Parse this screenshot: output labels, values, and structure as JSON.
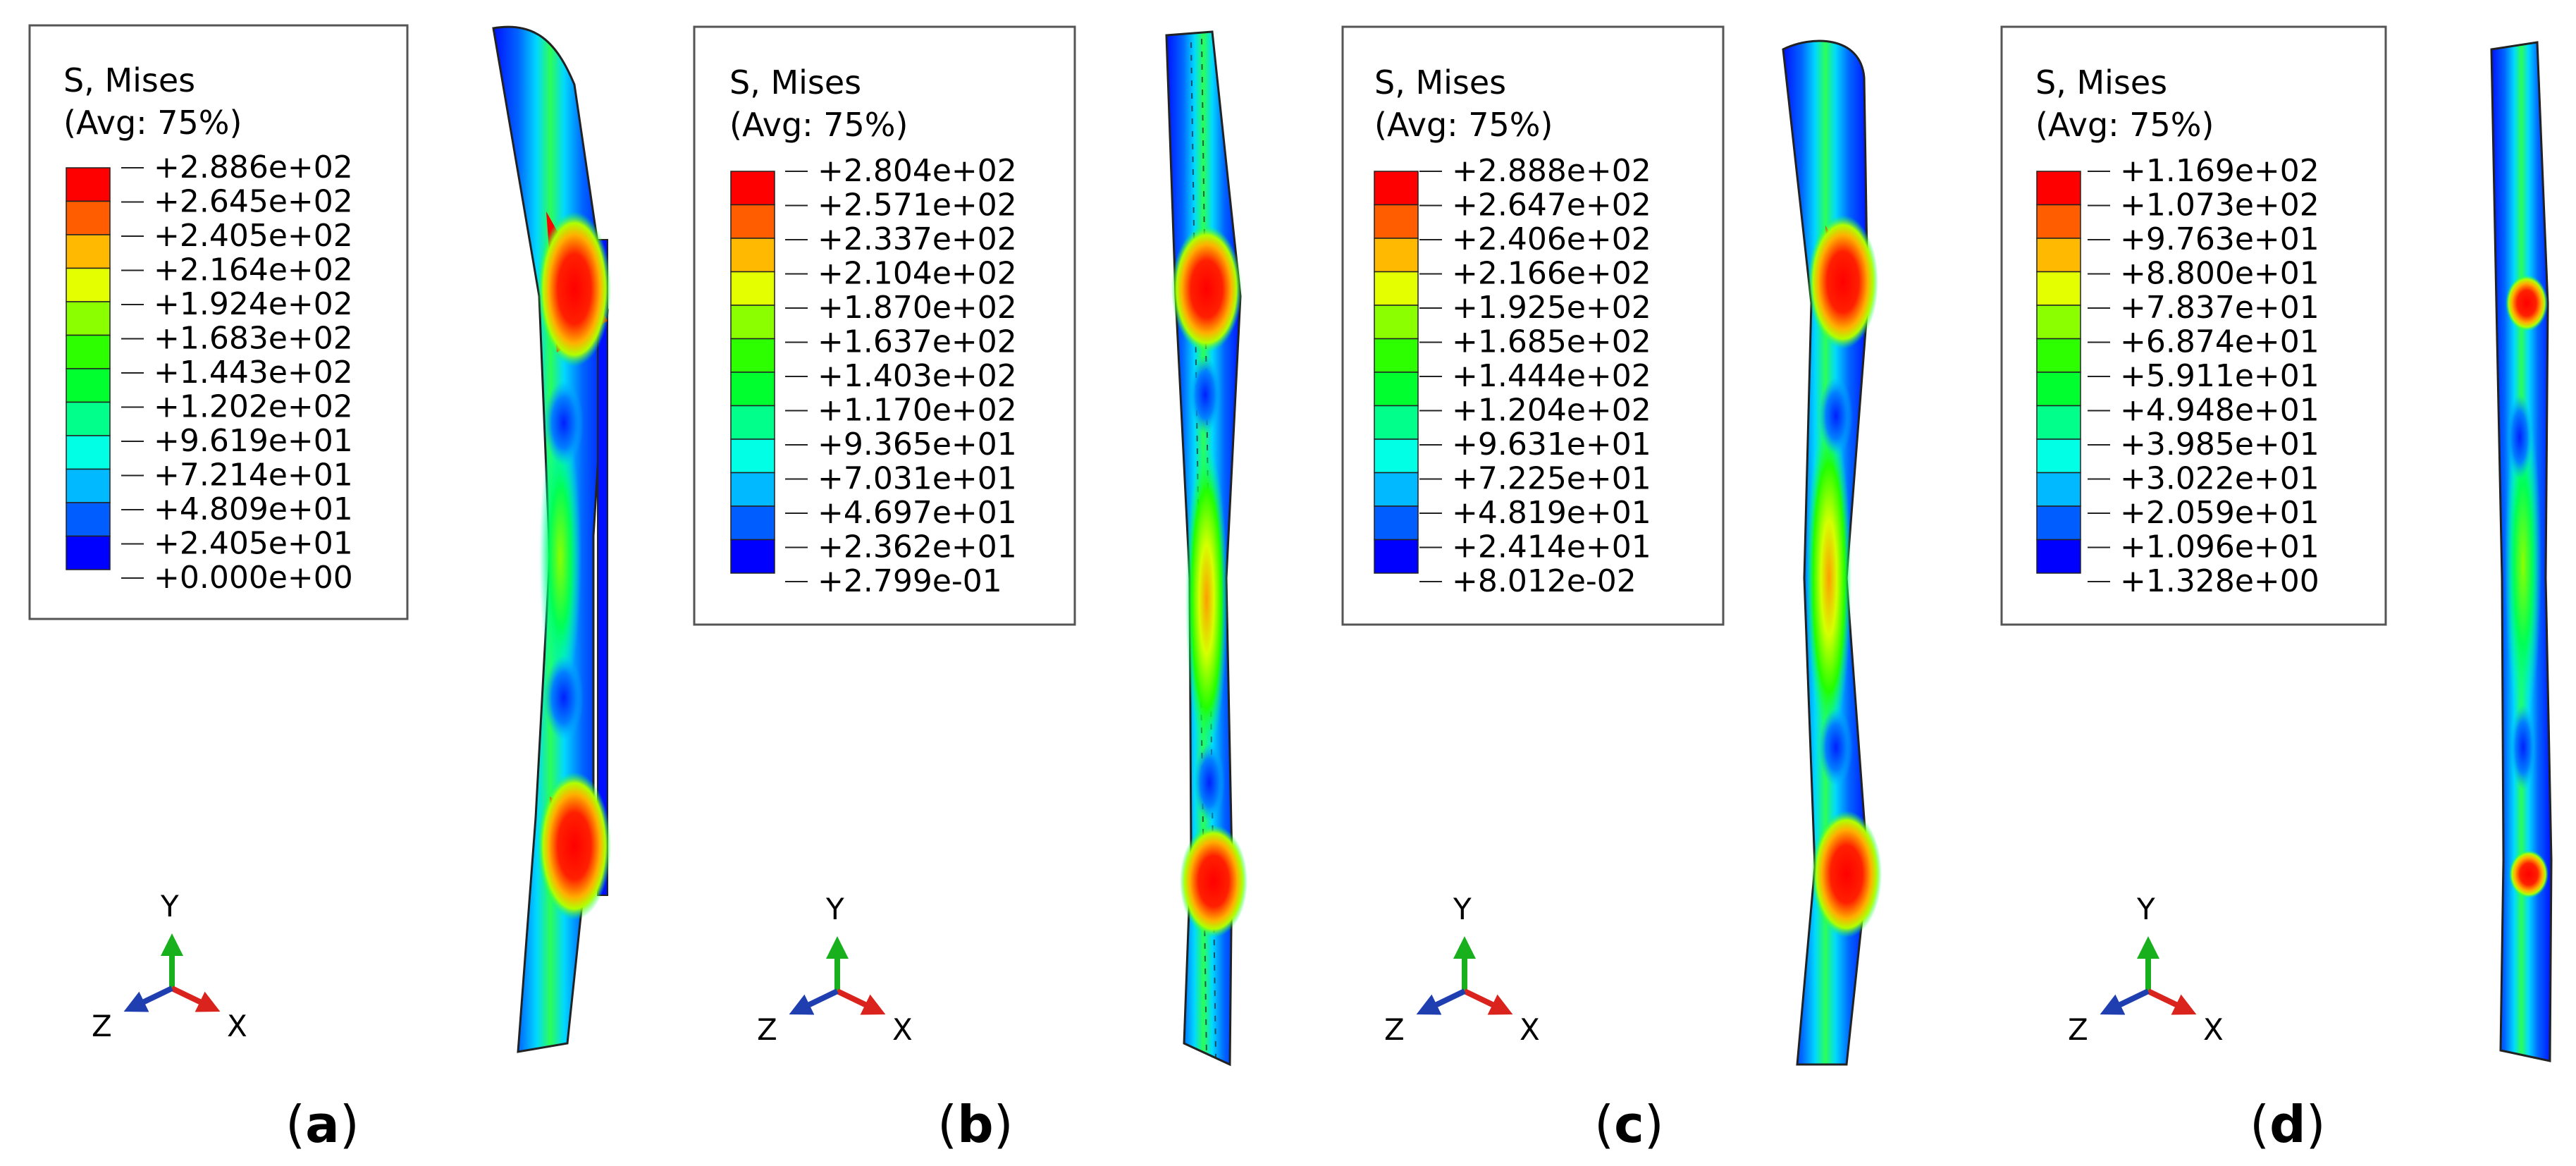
{
  "panels": [
    {
      "id": "a",
      "legend_title": "S, Mises",
      "legend_subtitle": "(Avg: 75%)",
      "legend_values": [
        "+2.886e+02",
        "+2.645e+02",
        "+2.405e+02",
        "+2.164e+02",
        "+1.924e+02",
        "+1.683e+02",
        "+1.443e+02",
        "+1.202e+02",
        "+9.619e+01",
        "+7.214e+01",
        "+4.809e+01",
        "+2.405e+01",
        "+0.000e+00"
      ],
      "axis_labels": {
        "y": "Y",
        "z": "Z",
        "x": "X"
      },
      "caption_open": "(",
      "caption_letter": "a",
      "caption_close": ")"
    },
    {
      "id": "b",
      "legend_title": "S, Mises",
      "legend_subtitle": "(Avg: 75%)",
      "legend_values": [
        "+2.804e+02",
        "+2.571e+02",
        "+2.337e+02",
        "+2.104e+02",
        "+1.870e+02",
        "+1.637e+02",
        "+1.403e+02",
        "+1.170e+02",
        "+9.365e+01",
        "+7.031e+01",
        "+4.697e+01",
        "+2.362e+01",
        "+2.799e-01"
      ],
      "axis_labels": {
        "y": "Y",
        "z": "Z",
        "x": "X"
      },
      "caption_open": "(",
      "caption_letter": "b",
      "caption_close": ")"
    },
    {
      "id": "c",
      "legend_title": "S, Mises",
      "legend_subtitle": "(Avg: 75%)",
      "legend_values": [
        "+2.888e+02",
        "+2.647e+02",
        "+2.406e+02",
        "+2.166e+02",
        "+1.925e+02",
        "+1.685e+02",
        "+1.444e+02",
        "+1.204e+02",
        "+9.631e+01",
        "+7.225e+01",
        "+4.819e+01",
        "+2.414e+01",
        "+8.012e-02"
      ],
      "axis_labels": {
        "y": "Y",
        "z": "Z",
        "x": "X"
      },
      "caption_open": "(",
      "caption_letter": "c",
      "caption_close": ")"
    },
    {
      "id": "d",
      "legend_title": "S, Mises",
      "legend_subtitle": "(Avg: 75%)",
      "legend_values": [
        "+1.169e+02",
        "+1.073e+02",
        "+9.763e+01",
        "+8.800e+01",
        "+7.837e+01",
        "+6.874e+01",
        "+5.911e+01",
        "+4.948e+01",
        "+3.985e+01",
        "+3.022e+01",
        "+2.059e+01",
        "+1.096e+01",
        "+1.328e+00"
      ],
      "axis_labels": {
        "y": "Y",
        "z": "Z",
        "x": "X"
      },
      "caption_open": "(",
      "caption_letter": "d",
      "caption_close": ")"
    }
  ],
  "contour_colors": [
    "#ff0000",
    "#ff5d00",
    "#ffb900",
    "#e4ff00",
    "#8bff00",
    "#2eff00",
    "#00ff2e",
    "#00ff8b",
    "#00ffe4",
    "#00b9ff",
    "#005dff",
    "#0000ff"
  ],
  "axis_colors": {
    "x": "#d9231c",
    "y": "#18b01d",
    "z": "#1f3fb0"
  }
}
